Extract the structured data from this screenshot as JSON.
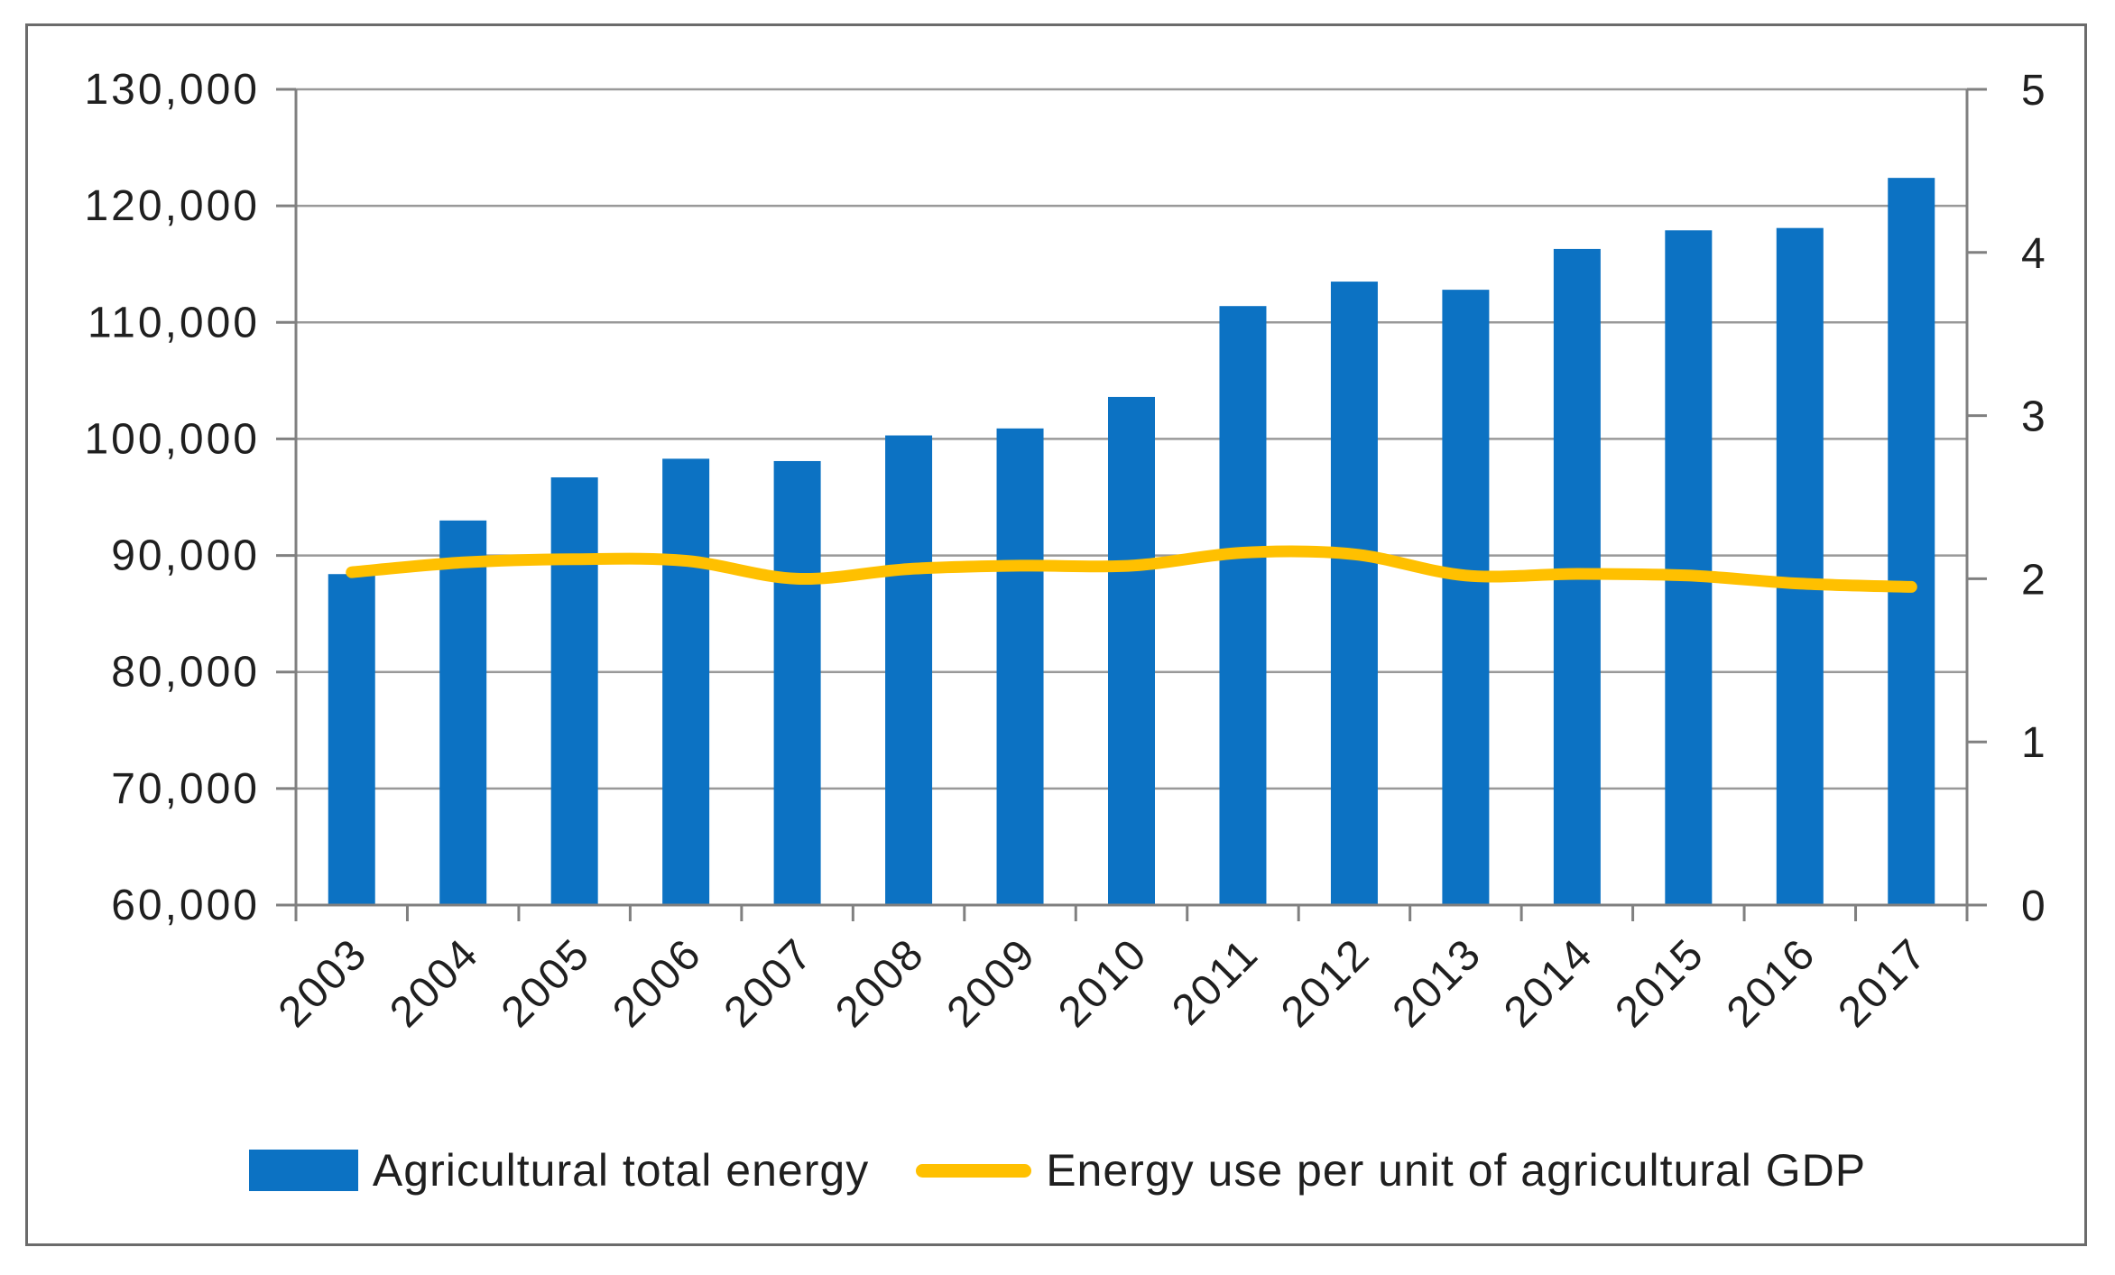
{
  "chart_data": {
    "type": "bar+line combo",
    "categories": [
      "2003",
      "2004",
      "2005",
      "2006",
      "2007",
      "2008",
      "2009",
      "2010",
      "2011",
      "2012",
      "2013",
      "2014",
      "2015",
      "2016",
      "2017"
    ],
    "series": [
      {
        "name": "Agricultural total energy",
        "type": "bar",
        "axis": "left",
        "color": "#0C72C3",
        "values": [
          88400,
          93000,
          96700,
          98300,
          98100,
          100300,
          100900,
          103600,
          111400,
          113500,
          112800,
          116300,
          117900,
          118100,
          122400
        ]
      },
      {
        "name": "Energy use per unit of agricultural GDP",
        "type": "line",
        "axis": "right",
        "color": "#FFC000",
        "values": [
          2.04,
          2.1,
          2.12,
          2.11,
          2.0,
          2.06,
          2.08,
          2.08,
          2.16,
          2.15,
          2.02,
          2.03,
          2.02,
          1.97,
          1.95
        ]
      }
    ],
    "left_axis": {
      "min": 60000,
      "max": 130000,
      "step": 10000,
      "tick_labels": [
        "60,000",
        "70,000",
        "80,000",
        "90,000",
        "100,000",
        "110,000",
        "120,000",
        "130,000"
      ]
    },
    "right_axis": {
      "min": 0,
      "max": 5,
      "step": 1,
      "tick_labels": [
        "0",
        "1",
        "2",
        "3",
        "4",
        "5"
      ]
    },
    "title": "",
    "xlabel": "",
    "ylabel": "",
    "grid": true,
    "legend_position": "bottom",
    "x_tick_rotation_deg": -45
  },
  "legend": {
    "items": [
      {
        "label": "Agricultural total energy",
        "swatch": "bar",
        "color": "#0C72C3"
      },
      {
        "label": "Energy use per unit of agricultural GDP",
        "swatch": "line",
        "color": "#FFC000"
      }
    ]
  },
  "colors": {
    "bar": "#0C72C3",
    "line": "#FFC000",
    "gridline": "#999999",
    "axis": "#808080",
    "text": "#1F1F1F",
    "frame_border": "#6B6B6B",
    "background": "#FFFFFF"
  }
}
